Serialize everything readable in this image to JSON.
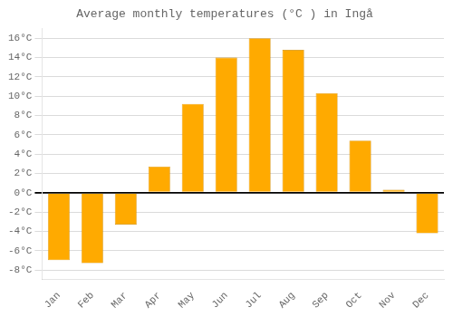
{
  "chart_data": {
    "type": "bar",
    "title": "Average monthly temperatures (°C ) in Ingå",
    "categories": [
      "Jan",
      "Feb",
      "Mar",
      "Apr",
      "May",
      "Jun",
      "Jul",
      "Aug",
      "Sep",
      "Oct",
      "Nov",
      "Dec"
    ],
    "values": [
      -7.0,
      -7.3,
      -3.3,
      2.7,
      9.2,
      14.0,
      16.0,
      14.8,
      10.3,
      5.4,
      0.3,
      -4.2
    ],
    "color": "#FFAA00",
    "ylim": [
      -9,
      17
    ],
    "yticks": [
      {
        "value": -8,
        "label": "-8°C"
      },
      {
        "value": -6,
        "label": "-6°C"
      },
      {
        "value": -4,
        "label": "-4°C"
      },
      {
        "value": -2,
        "label": "-2°C"
      },
      {
        "value": 0,
        "label": "0°C"
      },
      {
        "value": 2,
        "label": "2°C"
      },
      {
        "value": 4,
        "label": "4°C"
      },
      {
        "value": 6,
        "label": "6°C"
      },
      {
        "value": 8,
        "label": "8°C"
      },
      {
        "value": 10,
        "label": "10°C"
      },
      {
        "value": 12,
        "label": "12°C"
      },
      {
        "value": 14,
        "label": "14°C"
      },
      {
        "value": 16,
        "label": "16°C"
      }
    ],
    "grid": true
  }
}
